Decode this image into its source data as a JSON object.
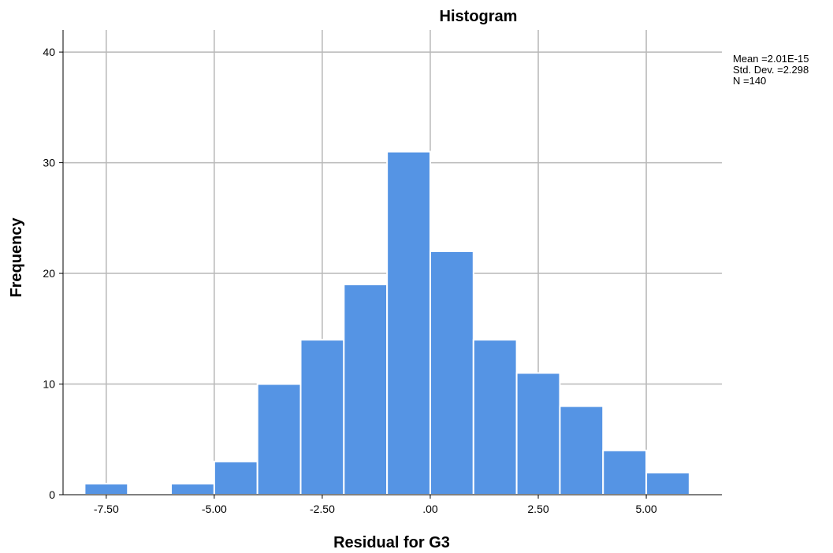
{
  "chart_data": {
    "type": "bar",
    "title": "Histogram",
    "xlabel": "Residual for G3",
    "ylabel": "Frequency",
    "bin_width": 1.0,
    "x_ticks": [
      -7.5,
      -5.0,
      -2.5,
      0.0,
      2.5,
      5.0
    ],
    "x_tick_labels": [
      "-7.50",
      "-5.00",
      "-2.50",
      ".00",
      "2.50",
      "5.00"
    ],
    "y_ticks": [
      0,
      10,
      20,
      30,
      40
    ],
    "y_tick_labels": [
      "0",
      "10",
      "20",
      "30",
      "40"
    ],
    "xlim": [
      -8.5,
      6.75
    ],
    "ylim": [
      0,
      42
    ],
    "grid": true,
    "bins": [
      {
        "x0": -8.0,
        "x1": -7.0,
        "value": 1
      },
      {
        "x0": -6.0,
        "x1": -5.0,
        "value": 1
      },
      {
        "x0": -5.0,
        "x1": -4.0,
        "value": 3
      },
      {
        "x0": -4.0,
        "x1": -3.0,
        "value": 10
      },
      {
        "x0": -3.0,
        "x1": -2.0,
        "value": 14
      },
      {
        "x0": -2.0,
        "x1": -1.0,
        "value": 19
      },
      {
        "x0": -1.0,
        "x1": 0.0,
        "value": 31
      },
      {
        "x0": 0.0,
        "x1": 1.0,
        "value": 22
      },
      {
        "x0": 1.0,
        "x1": 2.0,
        "value": 14
      },
      {
        "x0": 2.0,
        "x1": 3.0,
        "value": 11
      },
      {
        "x0": 3.0,
        "x1": 4.0,
        "value": 8
      },
      {
        "x0": 4.0,
        "x1": 5.0,
        "value": 4
      },
      {
        "x0": 5.0,
        "x1": 6.0,
        "value": 2
      }
    ],
    "bar_color": "#5594e4",
    "stats": {
      "mean_line": "Mean =2.01E-15",
      "std_line": "Std. Dev. =2.298",
      "n_line": "N =140"
    }
  }
}
